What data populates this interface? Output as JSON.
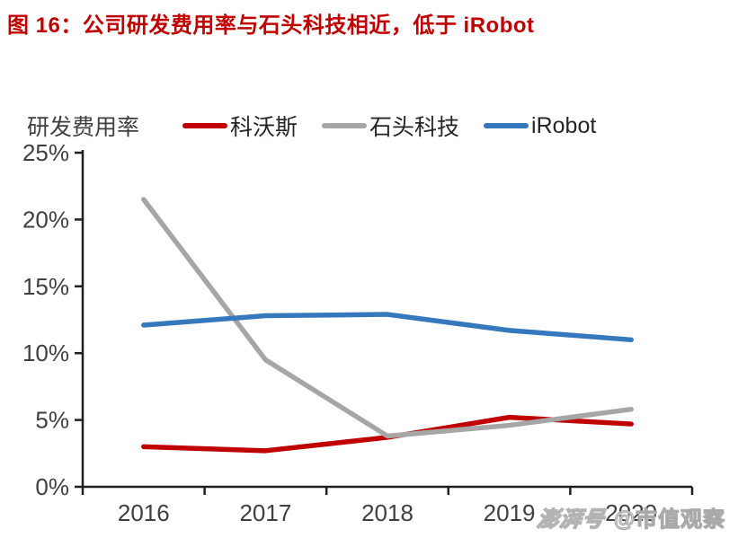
{
  "title": "图 16：公司研发费用率与石头科技相近，低于 iRobot",
  "accent_color": "#C00000",
  "axis_color": "#1f1f1f",
  "tick_label_color": "#3f3f3f",
  "watermark": {
    "logo": "澎湃号",
    "handle": "@市值观察"
  },
  "chart_data": {
    "type": "line",
    "title": "",
    "xlabel": "",
    "ylabel": "研发费用率",
    "categories": [
      "2016",
      "2017",
      "2018",
      "2019",
      "2020"
    ],
    "series": [
      {
        "name": "科沃斯",
        "color": "#C00000",
        "values": [
          3.0,
          2.7,
          3.7,
          5.2,
          4.7
        ]
      },
      {
        "name": "石头科技",
        "color": "#A6A6A6",
        "values": [
          21.5,
          9.5,
          3.8,
          4.6,
          5.8
        ]
      },
      {
        "name": "iRobot",
        "color": "#3579BC",
        "values": [
          12.1,
          12.8,
          12.9,
          11.7,
          11.0
        ]
      }
    ],
    "ylim": [
      0,
      25
    ],
    "yticks": [
      0,
      5,
      10,
      15,
      20,
      25
    ],
    "ytick_suffix": "%",
    "grid": false,
    "legend_position": "top"
  }
}
